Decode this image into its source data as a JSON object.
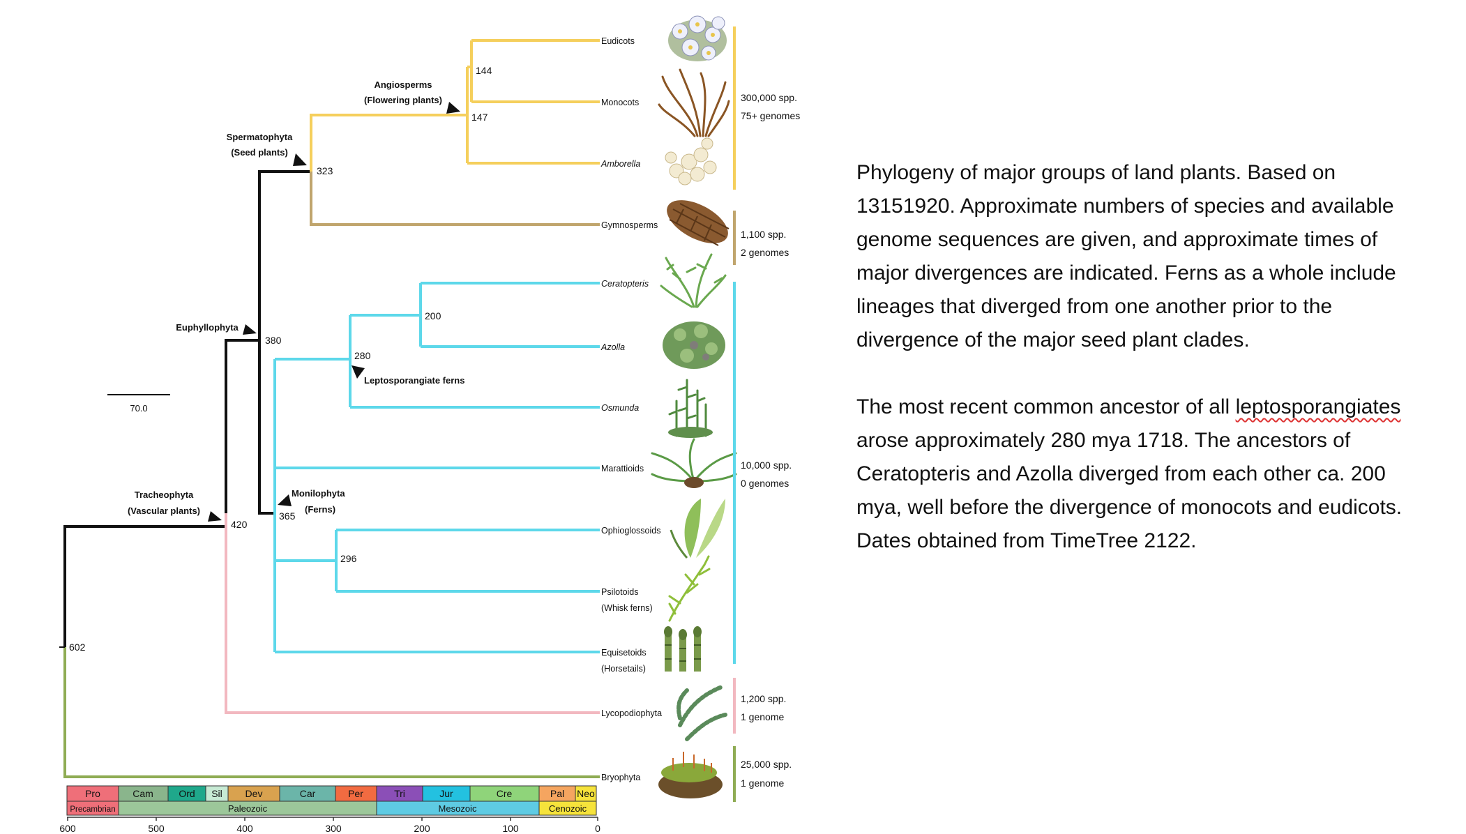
{
  "clades": {
    "angiosperms": "Angiosperms",
    "angiosperms_common": "(Flowering plants)",
    "spermatophyta": "Spermatophyta",
    "spermatophyta_common": "(Seed plants)",
    "euphyllophyta": "Euphyllophyta",
    "tracheophyta": "Tracheophyta",
    "tracheophyta_common": "(Vascular plants)",
    "monilophyta": "Monilophyta",
    "monilophyta_common": "(Ferns)",
    "leptosporangiate": "Leptosporangiate ferns"
  },
  "taxa": {
    "eudicots": "Eudicots",
    "monocots": "Monocots",
    "amborella": "Amborella",
    "gymnosperms": "Gymnosperms",
    "ceratopteris": "Ceratopteris",
    "azolla": "Azolla",
    "osmunda": "Osmunda",
    "marattioids": "Marattioids",
    "ophioglossoids": "Ophioglossoids",
    "psilotoids": "Psilotoids",
    "psilotoids_common": "(Whisk ferns)",
    "equisetoids": "Equisetoids",
    "equisetoids_common": "(Horsetails)",
    "lycopodiophyta": "Lycopodiophyta",
    "bryophyta": "Bryophyta"
  },
  "node_ages": {
    "n144": "144",
    "n147": "147",
    "n323": "323",
    "n200": "200",
    "n280": "280",
    "n380": "380",
    "n365": "365",
    "n296": "296",
    "n420": "420",
    "n602": "602"
  },
  "scale_bar": "70.0",
  "counts": {
    "angio_spp": "300,000 spp.",
    "angio_genomes": "75+ genomes",
    "gymno_spp": "1,100 spp.",
    "gymno_genomes": "2 genomes",
    "fern_spp": "10,000 spp.",
    "fern_genomes": "0 genomes",
    "lyco_spp": "1,200 spp.",
    "lyco_genomes": "1 genome",
    "bryo_spp": "25,000 spp.",
    "bryo_genomes": "1 genome"
  },
  "periods": [
    "Pro",
    "Cam",
    "Ord",
    "Sil",
    "Dev",
    "Car",
    "Per",
    "Tri",
    "Jur",
    "Cre",
    "Pal",
    "Neo"
  ],
  "eras": [
    "Precambrian",
    "Paleozoic",
    "Mesozoic",
    "Cenozoic"
  ],
  "axis_ticks": [
    "600",
    "500",
    "400",
    "300",
    "200",
    "100",
    "0"
  ],
  "colors": {
    "angiosperm": "#f5cf5c",
    "gymnosperm": "#c0a56d",
    "fern": "#5dd8ea",
    "lycophyte": "#f2b8c0",
    "bryophyte": "#8fac54",
    "stem": "#111111"
  },
  "caption": {
    "p1": "Phylogeny of major groups of land plants. Based on 13151920. Approximate numbers of species and available genome sequences are given, and approximate times of major divergences are indicated. Ferns as a whole include lineages that diverged from one another prior to the divergence of the major seed plant clades.",
    "p2_before": "The most recent common ancestor of all ",
    "p2_squiggle": "leptosporangiates",
    "p2_after": " arose approximately 280 mya 1718. The ancestors of Ceratopteris and Azolla diverged from each other ca. 200 mya, well before the divergence of monocots and eudicots. Dates obtained from TimeTree 2122."
  }
}
